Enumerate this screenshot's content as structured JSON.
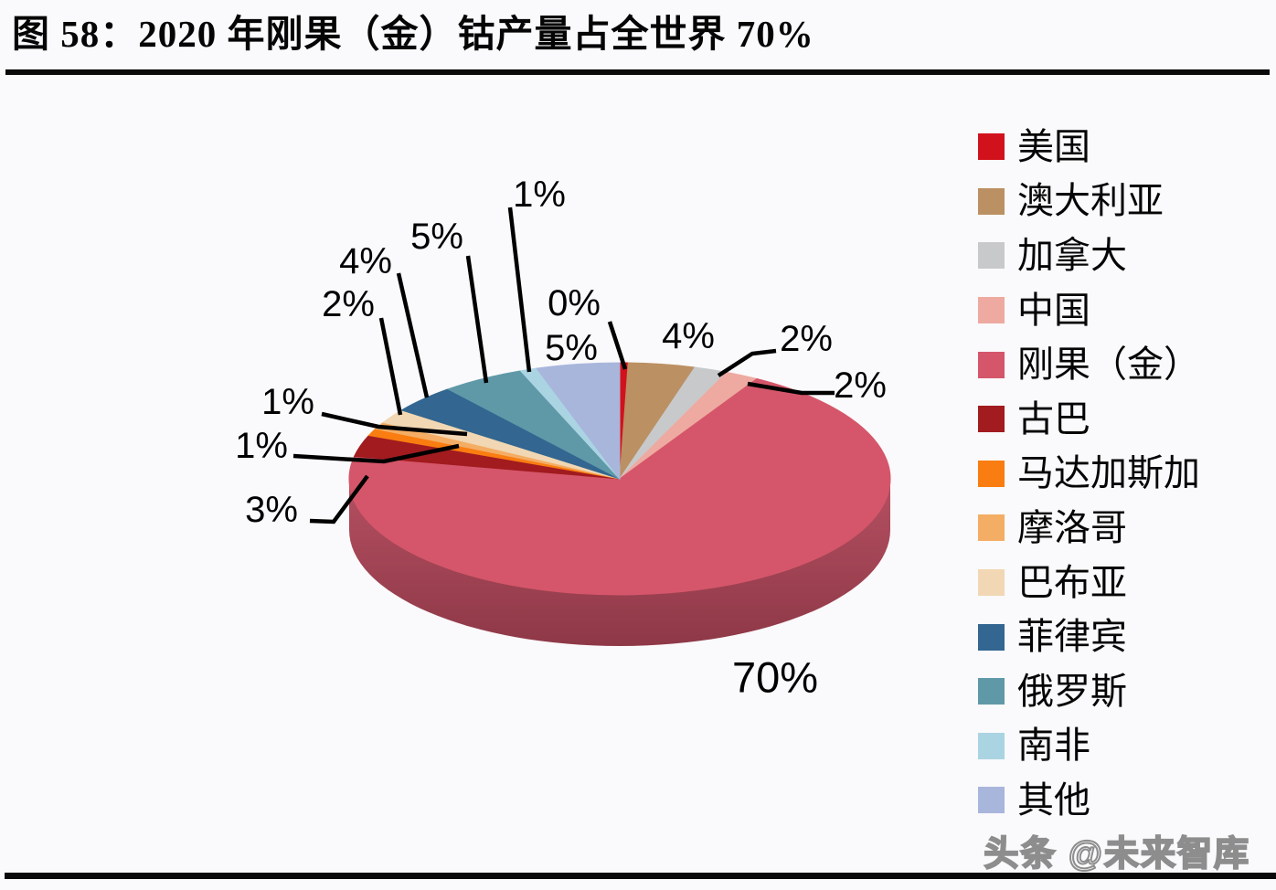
{
  "title": "图 58：2020 年刚果（金）钴产量占全世界 70%",
  "watermark": "头条 @未来智库",
  "chart_data": {
    "type": "pie",
    "style": "3d",
    "unit": "%",
    "start_angle_deg": 0,
    "direction": "clockwise",
    "legend_position": "right",
    "title": "2020 年刚果（金）钴产量占全世界 70%",
    "series": [
      {
        "name": "美国",
        "value": 0,
        "label": "0%",
        "color": "#d1121d"
      },
      {
        "name": "澳大利亚",
        "value": 4,
        "label": "4%",
        "color": "#bb9063"
      },
      {
        "name": "加拿大",
        "value": 2,
        "label": "2%",
        "color": "#c8c9cb"
      },
      {
        "name": "中国",
        "value": 2,
        "label": "2%",
        "color": "#eeaaa0"
      },
      {
        "name": "刚果（金）",
        "value": 70,
        "label": "70%",
        "color": "#d5566a"
      },
      {
        "name": "古巴",
        "value": 3,
        "label": "3%",
        "color": "#a11b1f"
      },
      {
        "name": "马达加斯加",
        "value": 1,
        "label": "1%",
        "color": "#f97d11"
      },
      {
        "name": "摩洛哥",
        "value": 1,
        "label": "1%",
        "color": "#f4ad64"
      },
      {
        "name": "巴布亚",
        "value": 2,
        "label": "2%",
        "color": "#f1d7b3"
      },
      {
        "name": "菲律宾",
        "value": 4,
        "label": "4%",
        "color": "#336690"
      },
      {
        "name": "俄罗斯",
        "value": 5,
        "label": "5%",
        "color": "#5f99a8"
      },
      {
        "name": "南非",
        "value": 1,
        "label": "1%",
        "color": "#abd4e3"
      },
      {
        "name": "其他",
        "value": 5,
        "label": "5%",
        "color": "#a9b6dc"
      }
    ],
    "side_color_top": "#b55062",
    "side_color_bottom": "#8e3847"
  }
}
